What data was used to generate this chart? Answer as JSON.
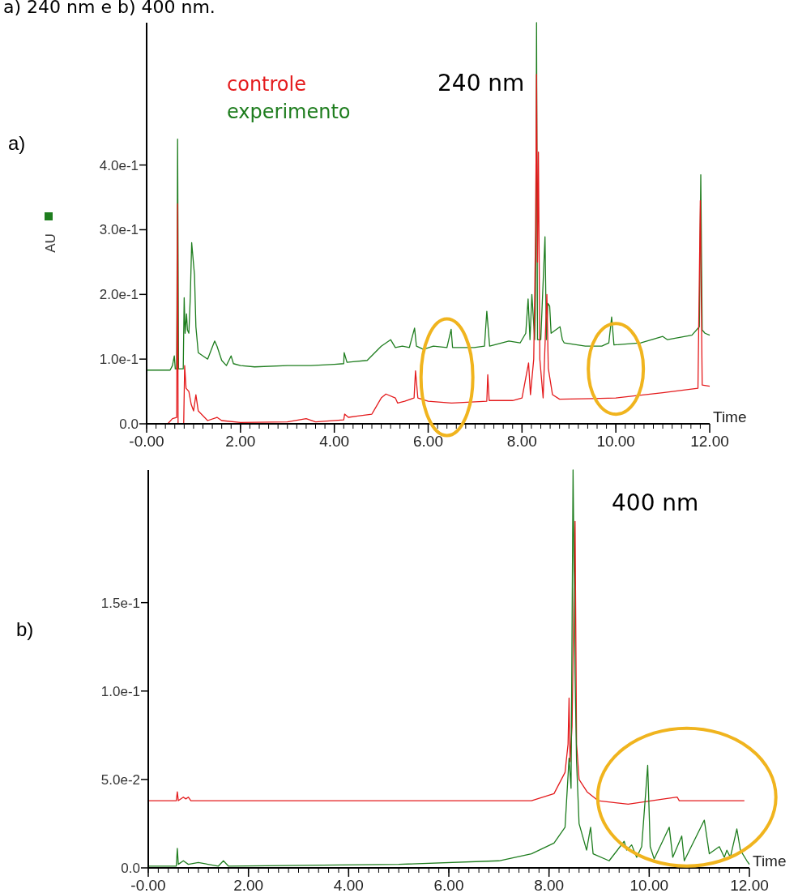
{
  "chart_data": [
    {
      "type": "line",
      "title": "a) 240 nm e b) 400 nm.",
      "xlabel": "Time",
      "ylabel": "AU",
      "legend": "top left",
      "annotations": [
        "a)",
        "240 nm"
      ],
      "xlim": [
        0,
        12
      ],
      "ylim": [
        0,
        0.62
      ],
      "xticks": [
        {
          "value": 0,
          "label": "-0.00"
        },
        {
          "value": 2,
          "label": "2.00"
        },
        {
          "value": 4,
          "label": "4.00"
        },
        {
          "value": 6,
          "label": "6.00"
        },
        {
          "value": 8,
          "label": "8.00"
        },
        {
          "value": 10,
          "label": "10.00"
        },
        {
          "value": 12,
          "label": "12.00"
        }
      ],
      "yticks": [
        {
          "value": 0,
          "label": "0.0"
        },
        {
          "value": 0.1,
          "label": "1.0e-1"
        },
        {
          "value": 0.2,
          "label": "2.0e-1"
        },
        {
          "value": 0.3,
          "label": "3.0e-1"
        },
        {
          "value": 0.4,
          "label": "4.0e-1"
        }
      ],
      "series": [
        {
          "name": "experimento",
          "color": "#1e7d1e",
          "x": [
            0,
            0.5,
            0.55,
            0.59,
            0.61,
            0.64,
            0.66,
            0.68,
            0.78,
            0.8,
            0.82,
            0.85,
            0.87,
            0.9,
            0.93,
            0.96,
            1.02,
            1.05,
            1.1,
            1.3,
            1.45,
            1.5,
            1.6,
            1.7,
            1.8,
            1.85,
            2.0,
            2.3,
            3.0,
            3.5,
            4.0,
            4.2,
            4.21,
            4.27,
            4.4,
            4.7,
            5.0,
            5.2,
            5.3,
            5.45,
            5.6,
            5.71,
            5.75,
            5.9,
            6.11,
            6.4,
            6.49,
            6.52,
            6.98,
            7.2,
            7.25,
            7.31,
            7.72,
            7.96,
            8.08,
            8.13,
            8.17,
            8.21,
            8.27,
            8.29,
            8.31,
            8.33,
            8.4,
            8.49,
            8.52,
            8.55,
            8.59,
            8.62,
            8.81,
            8.86,
            8.9,
            9.35,
            9.7,
            9.85,
            9.91,
            9.96,
            10.53,
            11.0,
            11.1,
            11.62,
            11.78,
            11.81,
            11.84,
            11.9,
            12.0
          ],
          "values": [
            0.083,
            0.083,
            0.09,
            0.105,
            0.085,
            0.085,
            0.44,
            0.085,
            0.085,
            0.195,
            0.14,
            0.17,
            0.145,
            0.14,
            0.195,
            0.28,
            0.23,
            0.15,
            0.11,
            0.1,
            0.128,
            0.12,
            0.098,
            0.09,
            0.105,
            0.093,
            0.09,
            0.088,
            0.09,
            0.09,
            0.092,
            0.093,
            0.11,
            0.095,
            0.096,
            0.098,
            0.12,
            0.13,
            0.118,
            0.12,
            0.118,
            0.148,
            0.12,
            0.115,
            0.12,
            0.118,
            0.146,
            0.118,
            0.118,
            0.12,
            0.174,
            0.12,
            0.128,
            0.125,
            0.14,
            0.193,
            0.13,
            0.2,
            0.13,
            0.2,
            0.62,
            0.13,
            0.13,
            0.289,
            0.13,
            0.186,
            0.182,
            0.14,
            0.15,
            0.13,
            0.125,
            0.12,
            0.12,
            0.125,
            0.165,
            0.122,
            0.125,
            0.135,
            0.13,
            0.137,
            0.15,
            0.385,
            0.145,
            0.14,
            0.137
          ]
        },
        {
          "name": "controle",
          "color": "#e41a1c",
          "x": [
            0,
            0.45,
            0.55,
            0.64,
            0.66,
            0.67,
            0.79,
            0.81,
            0.84,
            0.9,
            0.95,
            1.0,
            1.05,
            1.1,
            1.3,
            1.5,
            1.6,
            2.0,
            3.0,
            3.4,
            3.6,
            4.2,
            4.22,
            4.3,
            4.5,
            4.8,
            5.0,
            5.1,
            5.3,
            5.35,
            5.5,
            5.7,
            5.73,
            5.78,
            6.0,
            6.5,
            7.0,
            7.25,
            7.27,
            7.3,
            7.8,
            8.0,
            8.14,
            8.18,
            8.25,
            8.29,
            8.31,
            8.33,
            8.35,
            8.38,
            8.45,
            8.5,
            8.53,
            8.56,
            8.65,
            8.8,
            9.5,
            10.0,
            11.0,
            11.75,
            11.8,
            11.84,
            12.0
          ],
          "values": [
            0,
            0,
            0.008,
            0.01,
            0.34,
            0,
            0,
            0.09,
            0.055,
            0.05,
            0.03,
            0.02,
            0.045,
            0.02,
            0.005,
            0.01,
            0.005,
            0.002,
            0.003,
            0.008,
            0.003,
            0.006,
            0.015,
            0.01,
            0.012,
            0.015,
            0.04,
            0.046,
            0.04,
            0.032,
            0.035,
            0.04,
            0.082,
            0.04,
            0.035,
            0.032,
            0.034,
            0.035,
            0.076,
            0.036,
            0.036,
            0.04,
            0.094,
            0.045,
            0.1,
            0.3,
            0.54,
            0.25,
            0.42,
            0.1,
            0.04,
            0.141,
            0.2,
            0.086,
            0.045,
            0.038,
            0.039,
            0.04,
            0.048,
            0.055,
            0.345,
            0.06,
            0.058
          ]
        }
      ]
    },
    {
      "type": "line",
      "xlabel": "Time",
      "annotations": [
        "b)",
        "400 nm"
      ],
      "xlim": [
        0,
        12
      ],
      "ylim": [
        0,
        0.225
      ],
      "xticks": [
        {
          "value": 0,
          "label": "-0.00"
        },
        {
          "value": 2,
          "label": "2.00"
        },
        {
          "value": 4,
          "label": "4.00"
        },
        {
          "value": 6,
          "label": "6.00"
        },
        {
          "value": 8,
          "label": "8.00"
        },
        {
          "value": 10,
          "label": "10.00"
        },
        {
          "value": 12,
          "label": "12.00"
        }
      ],
      "yticks": [
        {
          "value": 0,
          "label": "0.0"
        },
        {
          "value": 0.05,
          "label": "5.0e-2"
        },
        {
          "value": 0.1,
          "label": "1.0e-1"
        },
        {
          "value": 0.15,
          "label": "1.5e-1"
        }
      ],
      "series": [
        {
          "color": "#e41a1c",
          "x": [
            0,
            0.56,
            0.58,
            0.6,
            0.7,
            0.75,
            0.8,
            0.85,
            7.65,
            8.1,
            8.32,
            8.38,
            8.4,
            8.42,
            8.46,
            8.52,
            8.55,
            8.6,
            8.76,
            8.98,
            9.58,
            10.3,
            10.56,
            10.6,
            11.9
          ],
          "values": [
            0.038,
            0.038,
            0.043,
            0.038,
            0.04,
            0.039,
            0.04,
            0.038,
            0.038,
            0.042,
            0.054,
            0.07,
            0.096,
            0.06,
            0.08,
            0.196,
            0.07,
            0.05,
            0.043,
            0.038,
            0.036,
            0.039,
            0.04,
            0.038,
            0.038
          ]
        },
        {
          "color": "#1e7d1e",
          "x": [
            0,
            0.56,
            0.58,
            0.6,
            0.7,
            0.8,
            1.0,
            1.4,
            1.5,
            1.6,
            5.0,
            7.0,
            7.65,
            8.1,
            8.32,
            8.4,
            8.44,
            8.48,
            8.52,
            8.55,
            8.6,
            8.75,
            8.83,
            8.88,
            9.2,
            9.5,
            9.55,
            9.65,
            9.75,
            9.85,
            9.97,
            10.02,
            10.1,
            10.4,
            10.47,
            10.65,
            10.7,
            11.1,
            11.2,
            11.4,
            11.5,
            11.55,
            11.62,
            11.75,
            11.82,
            11.95,
            12.0
          ],
          "values": [
            0.001,
            0.001,
            0.011,
            0.002,
            0.004,
            0.002,
            0.003,
            0.001,
            0.004,
            0.001,
            0.002,
            0.004,
            0.008,
            0.014,
            0.023,
            0.062,
            0.045,
            0.225,
            0.11,
            0.06,
            0.025,
            0.01,
            0.023,
            0.008,
            0.004,
            0.015,
            0.01,
            0.013,
            0.006,
            0.012,
            0.058,
            0.012,
            0.005,
            0.023,
            0.006,
            0.018,
            0.004,
            0.027,
            0.008,
            0.012,
            0.006,
            0.01,
            0.006,
            0.022,
            0.01,
            0.004,
            0.002
          ]
        }
      ]
    }
  ]
}
